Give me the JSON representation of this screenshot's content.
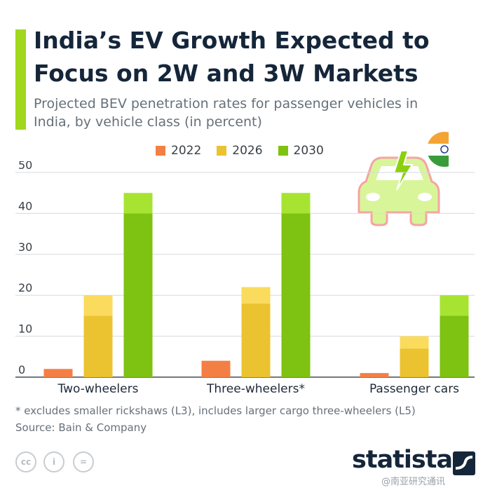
{
  "title": "India’s EV Growth Expected to Focus on 2W and 3W Markets",
  "subtitle": "Projected BEV penetration rates for passenger vehicles in India, by vehicle class (in percent)",
  "footnote": "* excludes smaller rickshaws (L3), includes larger cargo three-wheelers (L5)",
  "source": "Source: Bain & Company",
  "brand": "statista",
  "watermark": "@南亚研究通讯",
  "icons": [
    "cc-icon",
    "attribution-icon",
    "no-derivatives-icon",
    "india-flag-icon",
    "electric-car-icon"
  ],
  "colors": {
    "accent": "#9fd81d",
    "2022": "#f47f45",
    "2026": "#ebc330",
    "2030": "#7ec212",
    "2026_upper": "#fadb5d",
    "2030_upper": "#a6e431"
  },
  "chart_data": {
    "type": "bar",
    "categories": [
      "Two-wheelers",
      "Three-wheelers*",
      "Passenger cars"
    ],
    "series": [
      {
        "name": "2022",
        "values": [
          2,
          4,
          1
        ]
      },
      {
        "name": "2026",
        "values": [
          20,
          22,
          10
        ],
        "lower_segment": [
          15,
          18,
          7
        ]
      },
      {
        "name": "2030",
        "values": [
          45,
          45,
          20
        ],
        "lower_segment": [
          40,
          40,
          15
        ]
      }
    ],
    "ylim": [
      0,
      50
    ],
    "yticks": [
      "0",
      "10",
      "20",
      "30",
      "40",
      "50"
    ],
    "grid": true,
    "legend": "top-center"
  }
}
